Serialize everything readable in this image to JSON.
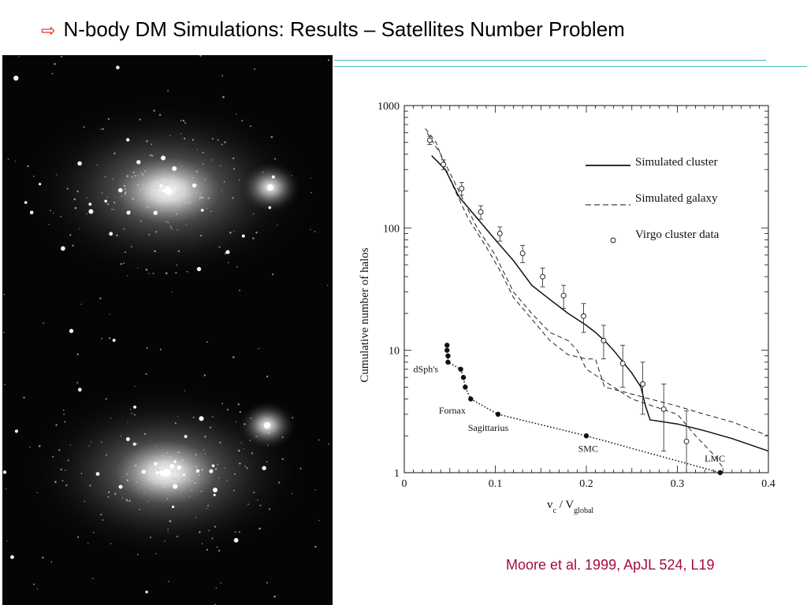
{
  "slide": {
    "title": "N-body DM Simulations: Results – Satellites Number Problem",
    "arrow_icon": "hollow-right-arrow",
    "citation": "Moore et al. 1999, ApJL 524, L19"
  },
  "colors": {
    "arrow": "#e0201c",
    "rule": "#43bfb3",
    "citation": "#a30d3a"
  },
  "chart_data": {
    "type": "line",
    "title": "",
    "xlabel": "v",
    "xlabel_sub1": "c",
    "xlabel_mid": " / V",
    "xlabel_sub2": "global",
    "ylabel": "Cumulative number of halos",
    "xlim": [
      0,
      0.4
    ],
    "ylim": [
      1,
      1000
    ],
    "yscale": "log",
    "grid": false,
    "legend_position": "top-right",
    "x_ticks": [
      {
        "value": 0,
        "label": "0"
      },
      {
        "value": 0.1,
        "label": "0.1"
      },
      {
        "value": 0.2,
        "label": "0.2"
      },
      {
        "value": 0.3,
        "label": "0.3"
      },
      {
        "value": 0.4,
        "label": "0.4"
      }
    ],
    "y_ticks": [
      {
        "value": 1,
        "label": "1"
      },
      {
        "value": 10,
        "label": "10"
      },
      {
        "value": 100,
        "label": "100"
      },
      {
        "value": 1000,
        "label": "1000"
      }
    ],
    "series": [
      {
        "name": "Simulated cluster",
        "style": "solid",
        "x": [
          0.03,
          0.045,
          0.06,
          0.08,
          0.1,
          0.12,
          0.14,
          0.16,
          0.18,
          0.2,
          0.21,
          0.22,
          0.23,
          0.25,
          0.26,
          0.265,
          0.27,
          0.3,
          0.33,
          0.36,
          0.4
        ],
        "y": [
          390,
          300,
          180,
          120,
          80,
          54,
          34,
          26,
          20,
          16,
          14,
          12,
          10,
          6.5,
          5,
          3.5,
          2.7,
          2.5,
          2.2,
          1.9,
          1.5
        ]
      },
      {
        "name": "Simulated galaxy",
        "style": "dashed",
        "x": [
          0.023,
          0.035,
          0.05,
          0.07,
          0.09,
          0.105,
          0.12,
          0.14,
          0.16,
          0.18,
          0.2,
          0.21,
          0.215,
          0.22,
          0.24,
          0.27,
          0.3,
          0.33,
          0.36,
          0.4
        ],
        "y": [
          650,
          500,
          250,
          120,
          70,
          45,
          27,
          18,
          12,
          9.2,
          8.5,
          8.5,
          6.5,
          5,
          4.6,
          4,
          3.5,
          3,
          2.6,
          2
        ],
        "x2": [
          0.025,
          0.04,
          0.06,
          0.08,
          0.1,
          0.12,
          0.14,
          0.16,
          0.18,
          0.19,
          0.2,
          0.25,
          0.3,
          0.32,
          0.34,
          0.35
        ],
        "y2": [
          600,
          400,
          200,
          100,
          60,
          30,
          20,
          14,
          12,
          10,
          7,
          4,
          3,
          2,
          1.4,
          1.1
        ]
      },
      {
        "name": "Virgo cluster data",
        "style": "open-circle",
        "x": [
          0.028,
          0.043,
          0.063,
          0.084,
          0.105,
          0.13,
          0.152,
          0.175,
          0.197,
          0.219,
          0.24,
          0.262,
          0.285,
          0.31
        ],
        "y": [
          520,
          330,
          210,
          135,
          90,
          62,
          40,
          28,
          19,
          12,
          7.8,
          5.3,
          3.3,
          1.8
        ],
        "y_low": [
          480,
          300,
          185,
          118,
          78,
          52,
          33,
          22,
          14,
          8.5,
          5,
          3,
          1.5,
          1.0
        ],
        "y_high": [
          560,
          360,
          235,
          152,
          102,
          72,
          47,
          34,
          24,
          16,
          11,
          8,
          5.3,
          3.2
        ]
      },
      {
        "name": "",
        "style": "dotted-filled",
        "x": [
          0.047,
          0.047,
          0.048,
          0.048,
          0.062,
          0.065,
          0.067,
          0.073,
          0.103,
          0.2,
          0.347
        ],
        "y": [
          11,
          10,
          9,
          8,
          7,
          6,
          5,
          4,
          3,
          2,
          1
        ]
      }
    ],
    "annotations": [
      {
        "text": "dSph's",
        "x": 0.01,
        "y": 6.6
      },
      {
        "text": "Fornax",
        "x": 0.038,
        "y": 3.05
      },
      {
        "text": "Sagittarius",
        "x": 0.07,
        "y": 2.2
      },
      {
        "text": "SMC",
        "x": 0.191,
        "y": 1.48
      },
      {
        "text": "LMC",
        "x": 0.33,
        "y": 1.23
      }
    ]
  }
}
